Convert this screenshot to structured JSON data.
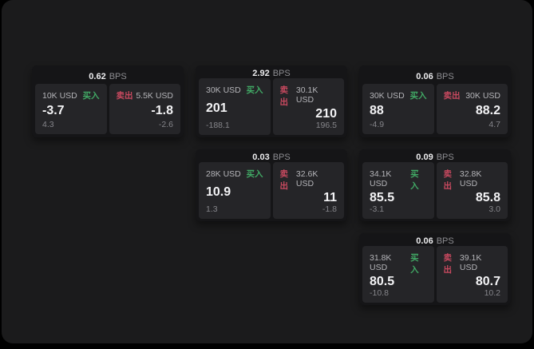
{
  "colors": {
    "panel_bg": "#1b1b1c",
    "card_bg": "#151517",
    "tile_bg": "#252528",
    "buy_green": "#41a965",
    "sell_red": "#c8495f"
  },
  "labels": {
    "bps": "BPS",
    "buy": "买入",
    "sell": "卖出"
  },
  "cards": [
    {
      "bps": "0.62",
      "buy": {
        "amount": "10K USD",
        "value": "-3.7",
        "sub": "4.3"
      },
      "sell": {
        "amount": "5.5K USD",
        "value": "-1.8",
        "sub": "-2.6"
      }
    },
    {
      "bps": "2.92",
      "buy": {
        "amount": "30K USD",
        "value": "201",
        "sub": "-188.1"
      },
      "sell": {
        "amount": "30.1K USD",
        "value": "210",
        "sub": "196.5"
      }
    },
    {
      "bps": "0.06",
      "buy": {
        "amount": "30K USD",
        "value": "88",
        "sub": "-4.9"
      },
      "sell": {
        "amount": "30K USD",
        "value": "88.2",
        "sub": "4.7"
      }
    },
    {
      "bps": "0.03",
      "buy": {
        "amount": "28K USD",
        "value": "10.9",
        "sub": "1.3"
      },
      "sell": {
        "amount": "32.6K USD",
        "value": "11",
        "sub": "-1.8"
      }
    },
    {
      "bps": "0.09",
      "buy": {
        "amount": "34.1K USD",
        "value": "85.5",
        "sub": "-3.1"
      },
      "sell": {
        "amount": "32.8K USD",
        "value": "85.8",
        "sub": "3.0"
      }
    },
    {
      "bps": "0.06",
      "buy": {
        "amount": "31.8K USD",
        "value": "80.5",
        "sub": "-10.8"
      },
      "sell": {
        "amount": "39.1K USD",
        "value": "80.7",
        "sub": "10.2"
      }
    }
  ]
}
